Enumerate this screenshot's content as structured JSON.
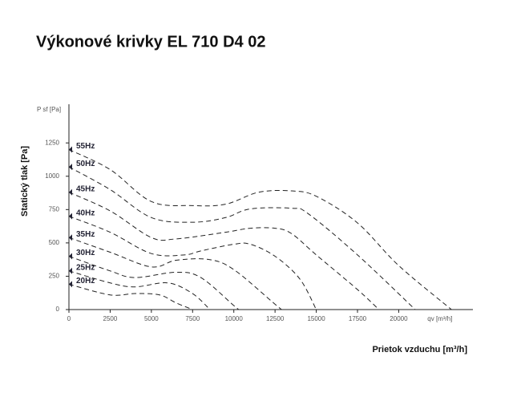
{
  "chart_data": {
    "type": "line",
    "title": "Výkonové krivky EL 710 D4 02",
    "xlabel": "Prietok vzduchu [m³/h]",
    "ylabel": "Statický tlak [Pa]",
    "x_unit_label": "qv [m³/h]",
    "y_unit_label": "P sf [Pa]",
    "xlim": [
      0,
      24500
    ],
    "ylim": [
      0,
      1540
    ],
    "xticks": [
      0,
      2500,
      5000,
      7500,
      10000,
      12500,
      15000,
      17500,
      20000
    ],
    "yticks": [
      0,
      250,
      500,
      750,
      1000,
      1250
    ],
    "line_style": "dashed",
    "color": "#222222",
    "series": [
      {
        "name": "55Hz",
        "x": [
          0,
          2500,
          5000,
          7500,
          9500,
          11500,
          13500,
          15000,
          17500,
          20000,
          23200
        ],
        "values": [
          1200,
          1050,
          810,
          780,
          790,
          880,
          890,
          850,
          650,
          330,
          0
        ]
      },
      {
        "name": "50Hz",
        "x": [
          0,
          2500,
          5000,
          7500,
          9500,
          11000,
          13500,
          14500,
          17500,
          21000
        ],
        "values": [
          1070,
          900,
          690,
          655,
          690,
          755,
          760,
          720,
          410,
          0
        ]
      },
      {
        "name": "45Hz",
        "x": [
          0,
          2500,
          5000,
          6500,
          9500,
          11000,
          12500,
          13500,
          15000,
          17500,
          18800
        ],
        "values": [
          880,
          740,
          540,
          530,
          580,
          610,
          610,
          570,
          410,
          150,
          0
        ]
      },
      {
        "name": "40Hz",
        "x": [
          0,
          2500,
          5000,
          7000,
          8000,
          10000,
          11000,
          12500,
          14000,
          15000
        ],
        "values": [
          700,
          580,
          420,
          410,
          440,
          490,
          490,
          400,
          230,
          0
        ]
      },
      {
        "name": "35Hz",
        "x": [
          0,
          2500,
          5000,
          6500,
          8500,
          10000,
          12500,
          12900
        ],
        "values": [
          540,
          430,
          320,
          370,
          375,
          300,
          40,
          0
        ]
      },
      {
        "name": "30Hz",
        "x": [
          0,
          2500,
          4000,
          6500,
          8000,
          10000,
          10300
        ],
        "values": [
          400,
          290,
          240,
          280,
          240,
          30,
          0
        ]
      },
      {
        "name": "25Hz",
        "x": [
          0,
          2500,
          4000,
          6000,
          7500,
          8550
        ],
        "values": [
          290,
          200,
          170,
          200,
          120,
          0
        ]
      },
      {
        "name": "20Hz",
        "x": [
          0,
          2500,
          4000,
          5500,
          6500,
          7500
        ],
        "values": [
          190,
          110,
          120,
          110,
          50,
          0
        ]
      }
    ]
  }
}
